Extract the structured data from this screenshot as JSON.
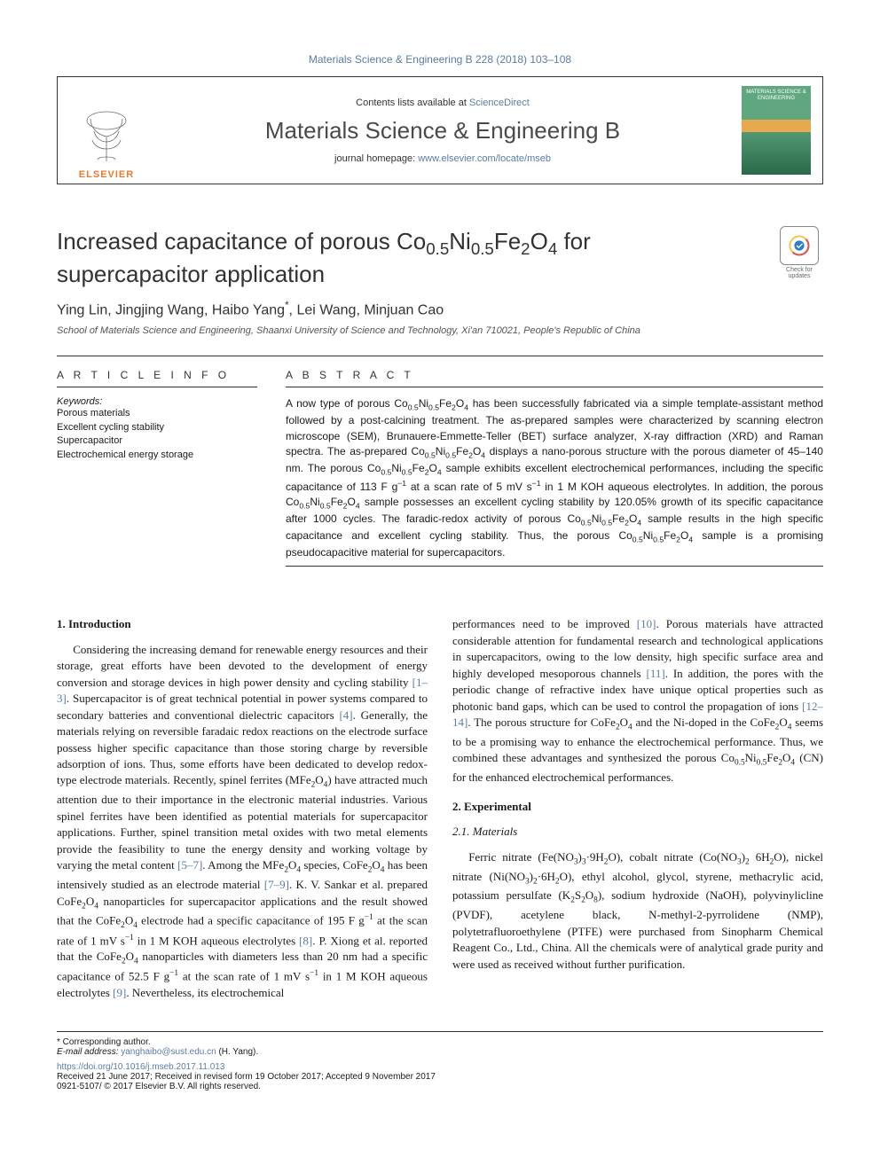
{
  "top_link": "Materials Science & Engineering B 228 (2018) 103–108",
  "top_link_color": "#5a7ba8",
  "header": {
    "publisher_word": "ELSEVIER",
    "contents_prefix": "Contents lists available at ",
    "contents_link": "ScienceDirect",
    "journal_title": "Materials Science & Engineering B",
    "homepage_prefix": "journal homepage: ",
    "homepage_link": "www.elsevier.com/locate/mseb",
    "cover_top": "MATERIALS SCIENCE & ENGINEERING"
  },
  "crossmark": {
    "label": "Check for updates"
  },
  "article": {
    "title_html": "Increased capacitance of porous Co<sub>0.5</sub>Ni<sub>0.5</sub>Fe<sub>2</sub>O<sub>4</sub> for supercapacitor application",
    "authors_html": "Ying Lin, Jingjing Wang, Haibo Yang<sup>*</sup>, Lei Wang, Minjuan Cao",
    "affiliation": "School of Materials Science and Engineering, Shaanxi University of Science and Technology, Xi'an 710021, People's Republic of China"
  },
  "info": {
    "head": "A R T I C L E  I N F O",
    "kw_label": "Keywords:",
    "keywords": [
      "Porous materials",
      "Excellent cycling stability",
      "Supercapacitor",
      "Electrochemical energy storage"
    ]
  },
  "abstract": {
    "head": "A B S T R A C T",
    "text_html": "A now type of porous Co<sub>0.5</sub>Ni<sub>0.5</sub>Fe<sub>2</sub>O<sub>4</sub> has been successfully fabricated via a simple template-assistant method followed by a post-calcining treatment. The as-prepared samples were characterized by scanning electron microscope (SEM), Brunauere-Emmette-Teller (BET) surface analyzer, X-ray diffraction (XRD) and Raman spectra. The as-prepared Co<sub>0.5</sub>Ni<sub>0.5</sub>Fe<sub>2</sub>O<sub>4</sub> displays a nano-porous structure with the porous diameter of 45–140 nm. The porous Co<sub>0.5</sub>Ni<sub>0.5</sub>Fe<sub>2</sub>O<sub>4</sub> sample exhibits excellent electrochemical performances, including the specific capacitance of 113 F g<sup>−1</sup> at a scan rate of 5 mV s<sup>−1</sup> in 1 M KOH aqueous electrolytes. In addition, the porous Co<sub>0.5</sub>Ni<sub>0.5</sub>Fe<sub>2</sub>O<sub>4</sub> sample possesses an excellent cycling stability by 120.05% growth of its specific capacitance after 1000 cycles. The faradic-redox activity of porous Co<sub>0.5</sub>Ni<sub>0.5</sub>Fe<sub>2</sub>O<sub>4</sub> sample results in the high specific capacitance and excellent cycling stability. Thus, the porous Co<sub>0.5</sub>Ni<sub>0.5</sub>Fe<sub>2</sub>O<sub>4</sub> sample is a promising pseudocapacitive material for supercapacitors."
  },
  "body": {
    "left": {
      "h1": "1. Introduction",
      "p1_html": "Considering the increasing demand for renewable energy resources and their storage, great efforts have been devoted to the development of energy conversion and storage devices in high power density and cycling stability <span class=\"cite\">[1–3]</span>. Supercapacitor is of great technical potential in power systems compared to secondary batteries and conventional dielectric capacitors <span class=\"cite\">[4]</span>. Generally, the materials relying on reversible faradaic redox reactions on the electrode surface possess higher specific capacitance than those storing charge by reversible adsorption of ions. Thus, some efforts have been dedicated to develop redox-type electrode materials. Recently, spinel ferrites (MFe<sub>2</sub>O<sub>4</sub>) have attracted much attention due to their importance in the electronic material industries. Various spinel ferrites have been identified as potential materials for supercapacitor applications. Further, spinel transition metal oxides with two metal elements provide the feasibility to tune the energy density and working voltage by varying the metal content <span class=\"cite\">[5–7]</span>. Among the MFe<sub>2</sub>O<sub>4</sub> species, CoFe<sub>2</sub>O<sub>4</sub> has been intensively studied as an electrode material <span class=\"cite\">[7–9]</span>. K. V. Sankar et al. prepared CoFe<sub>2</sub>O<sub>4</sub> nanoparticles for supercapacitor applications and the result showed that the CoFe<sub>2</sub>O<sub>4</sub> electrode had a specific capacitance of 195 F g<sup>−1</sup> at the scan rate of 1 mV s<sup>−1</sup> in 1 M KOH aqueous electrolytes <span class=\"cite\">[8]</span>. P. Xiong et al. reported that the CoFe<sub>2</sub>O<sub>4</sub> nanoparticles with diameters less than 20 nm had a specific capacitance of 52.5 F g<sup>−1</sup> at the scan rate of 1 mV s<sup>−1</sup> in 1 M KOH aqueous electrolytes <span class=\"cite\">[9]</span>. Nevertheless, its electrochemical"
    },
    "right": {
      "p1_html": "performances need to be improved <span class=\"cite\">[10]</span>. Porous materials have attracted considerable attention for fundamental research and technological applications in supercapacitors, owing to the low density, high specific surface area and highly developed mesoporous channels <span class=\"cite\">[11]</span>. In addition, the pores with the periodic change of refractive index have unique optical properties such as photonic band gaps, which can be used to control the propagation of ions <span class=\"cite\">[12–14]</span>. The porous structure for CoFe<sub>2</sub>O<sub>4</sub> and the Ni-doped in the CoFe<sub>2</sub>O<sub>4</sub> seems to be a promising way to enhance the electrochemical performance. Thus, we combined these advantages and synthesized the porous Co<sub>0.5</sub>Ni<sub>0.5</sub>Fe<sub>2</sub>O<sub>4</sub> (CN) for the enhanced electrochemical performances.",
      "h2": "2. Experimental",
      "h3": "2.1. Materials",
      "p2_html": "Ferric nitrate (Fe(NO<sub>3</sub>)<sub>3</sub>·9H<sub>2</sub>O), cobalt nitrate (Co(NO<sub>3</sub>)<sub>2</sub> 6H<sub>2</sub>O), nickel nitrate (Ni(NO<sub>3</sub>)<sub>2</sub>·6H<sub>2</sub>O), ethyl alcohol, glycol, styrene, methacrylic acid, potassium persulfate (K<sub>2</sub>S<sub>2</sub>O<sub>8</sub>), sodium hydroxide (NaOH), polyvinylicline (PVDF), acetylene black, N-methyl-2-pyrrolidene (NMP), polytetrafluoroethylene (PTFE) were purchased from Sinopharm Chemical Reagent Co., Ltd., China. All the chemicals were of analytical grade purity and were used as received without further purification."
    }
  },
  "footnotes": {
    "corresponding": "* Corresponding author.",
    "email_label": "E-mail address: ",
    "email": "yanghaibo@sust.edu.cn",
    "email_suffix": " (H. Yang).",
    "doi": "https://doi.org/10.1016/j.mseb.2017.11.013",
    "received": "Received 21 June 2017; Received in revised form 19 October 2017; Accepted 9 November 2017",
    "copyright": "0921-5107/ © 2017 Elsevier B.V. All rights reserved."
  },
  "colors": {
    "link": "#5a7ba8",
    "text": "#1a1a1a",
    "orange": "#e77a2f",
    "cover_green1": "#5fa87f",
    "cover_green2": "#2a6a4a",
    "cover_band": "#e7a94f"
  }
}
